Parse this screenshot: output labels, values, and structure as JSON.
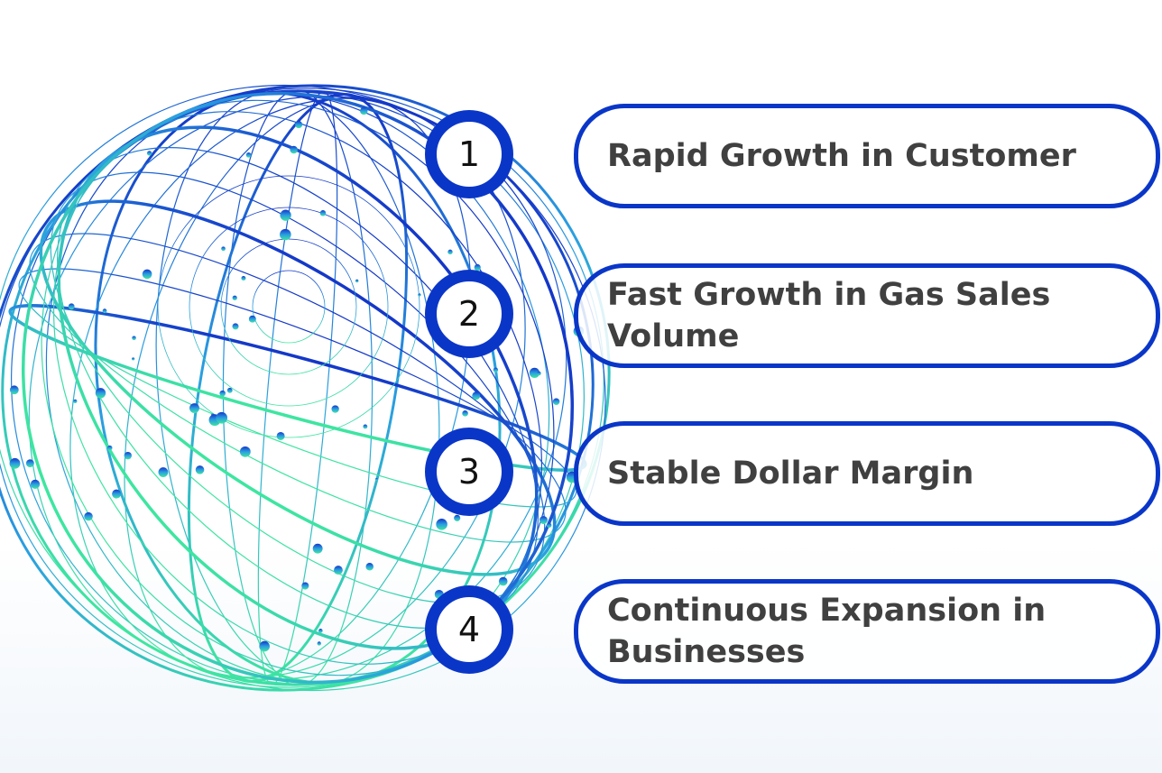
{
  "items": [
    {
      "number": 1,
      "label": "Rapid Growth in Customer"
    },
    {
      "number": 2,
      "label": "Fast Growth in Gas Sales Volume"
    },
    {
      "number": 3,
      "label": "Stable Dollar Margin"
    },
    {
      "number": 4,
      "label": "Continuous Expansion in Businesses"
    }
  ]
}
